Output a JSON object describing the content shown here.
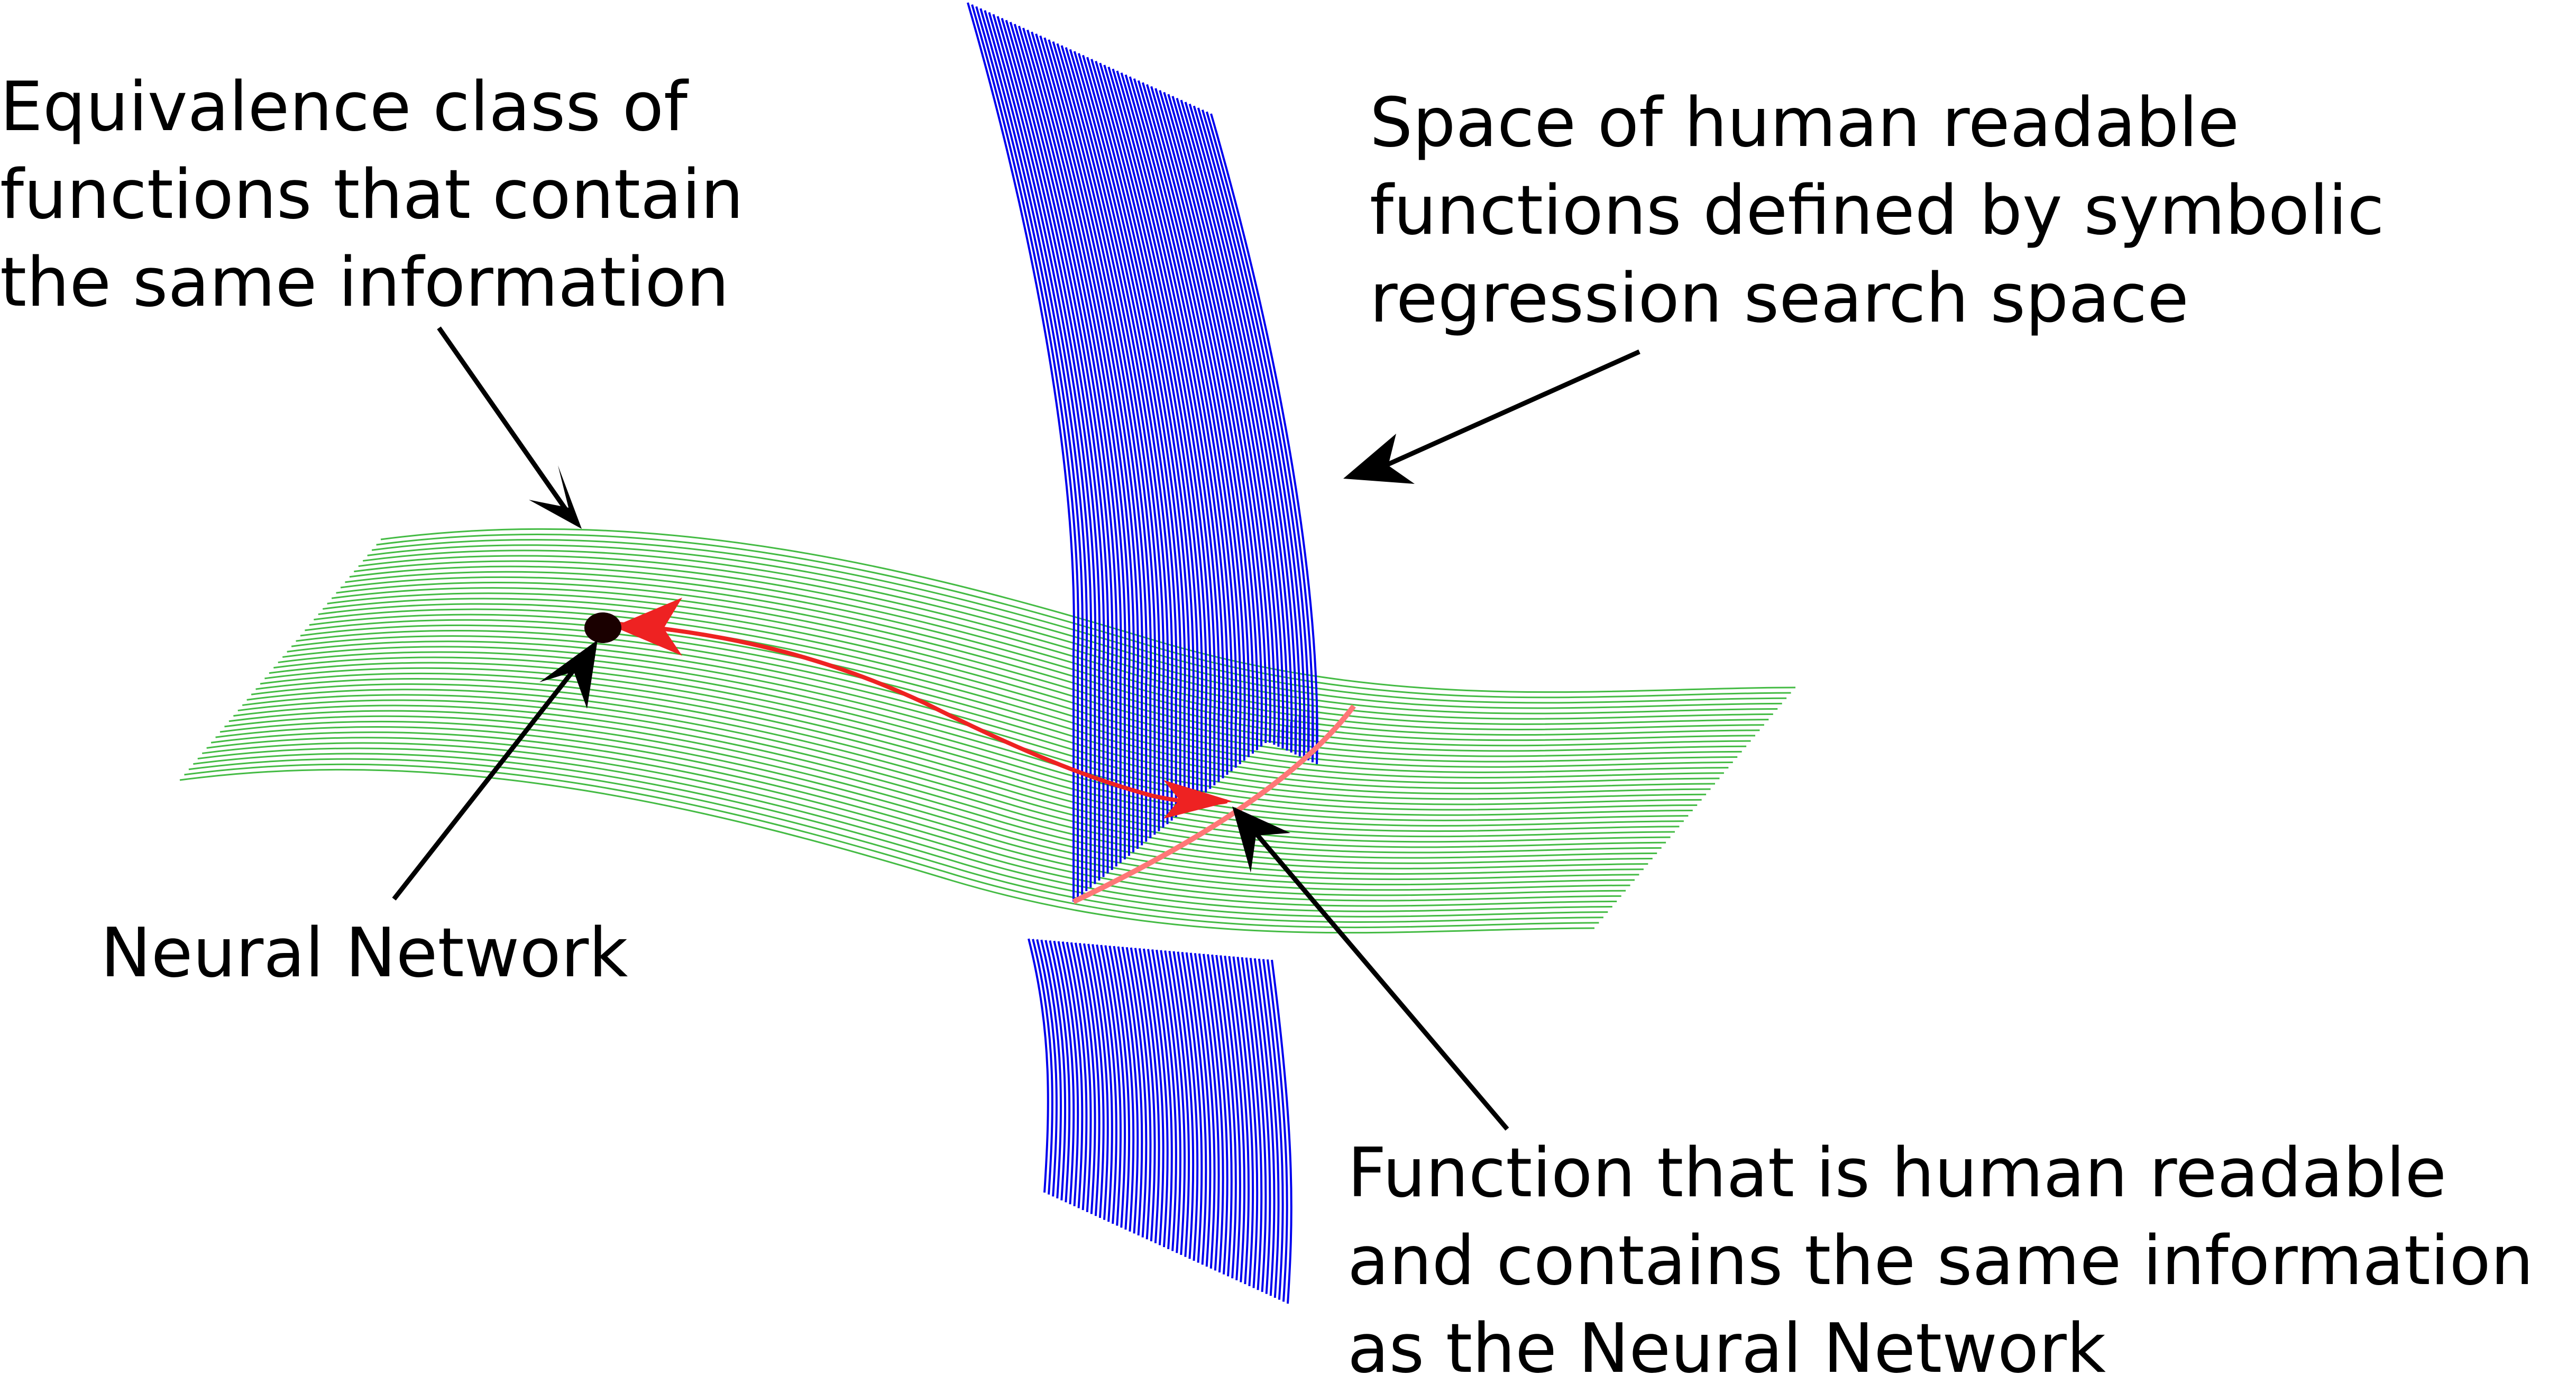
{
  "labels": {
    "equivalence_class": [
      "Equivalence class of",
      "functions that contain",
      "the same information"
    ],
    "symbolic_space": [
      "Space of human readable",
      "functions defined by symbolic",
      "regression search space"
    ],
    "neural_network": "Neural Network",
    "readable_function": [
      "Function that is human readable",
      "and contains the same information",
      "as the Neural Network"
    ]
  },
  "colors": {
    "green_surface": "#44bb44",
    "blue_surface": "#0000ee",
    "red_path": "#ee2222",
    "intersection": "#ff7777",
    "arrows": "#000000",
    "point": "#000000"
  }
}
